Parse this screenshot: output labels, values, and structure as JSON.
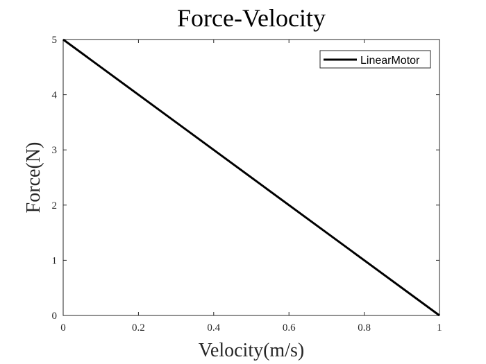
{
  "chart_data": {
    "type": "line",
    "title": "Force-Velocity",
    "xlabel": "Velocity(m/s)",
    "ylabel": "Force(N)",
    "xlim": [
      0,
      1
    ],
    "ylim": [
      0,
      5
    ],
    "xticks": [
      0,
      0.2,
      0.4,
      0.6,
      0.8,
      1
    ],
    "xtick_labels": [
      "0",
      "0.2",
      "0.4",
      "0.6",
      "0.8",
      "1"
    ],
    "yticks": [
      0,
      1,
      2,
      3,
      4,
      5
    ],
    "ytick_labels": [
      "0",
      "1",
      "2",
      "3",
      "4",
      "5"
    ],
    "grid": false,
    "legend_position": "top-right",
    "series": [
      {
        "name": "LinearMotor",
        "color": "#000000",
        "x": [
          0,
          1
        ],
        "y": [
          5,
          0
        ]
      }
    ]
  }
}
